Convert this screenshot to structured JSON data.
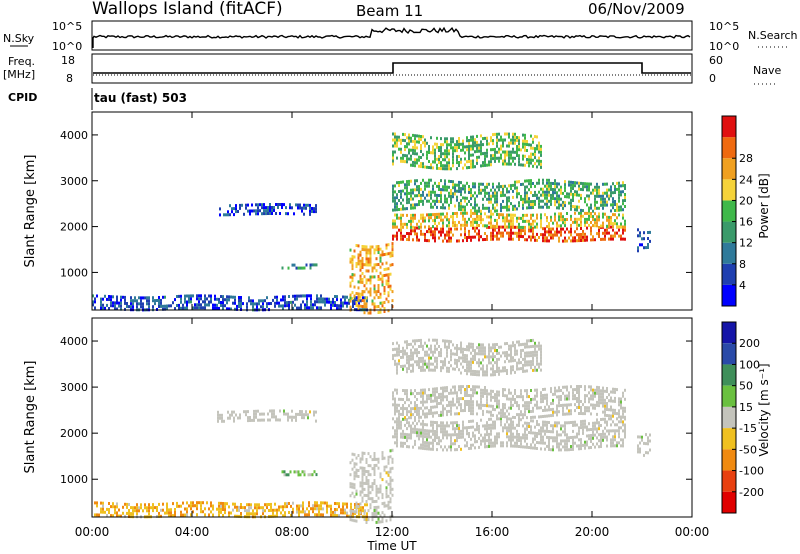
{
  "header": {
    "station": "Wallops Island (fitACF)",
    "beam": "Beam 11",
    "date": "06/Nov/2009"
  },
  "top_panels": {
    "nsky_label": "N.Sky",
    "nsky_ticks": [
      "10^5",
      "10^0"
    ],
    "nsearch_label": "N.Search",
    "nsearch_ticks": [
      "10^5",
      "10^0"
    ],
    "freq_label": "Freq.",
    "freq_unit": "[MHz]",
    "freq_ticks": [
      "18",
      "8"
    ],
    "nave_label": "Nave",
    "nave_ticks": [
      "60",
      "0"
    ],
    "cpid_label": "CPID",
    "cpid_value": "tau (fast) 503"
  },
  "colors": {
    "power_scale": [
      "#0000ff",
      "#1f3fb0",
      "#2f7a9a",
      "#3a9a6a",
      "#3fb84a",
      "#f5d33a",
      "#f0a020",
      "#ef6a10",
      "#e01010"
    ],
    "velocity_scale": [
      "#1515a8",
      "#2a4aa8",
      "#3f8f5a",
      "#6ac040",
      "#c4c4bc",
      "#efc020",
      "#f08a10",
      "#e84010",
      "#e00000"
    ],
    "ground_scatter": "#c4c4bc"
  },
  "chart_data": [
    {
      "type": "heatmap",
      "name": "Power",
      "ylabel": "Slant Range [km]",
      "xlim": [
        0,
        24
      ],
      "ylim": [
        180,
        4500
      ],
      "yticks": [
        1000,
        2000,
        3000,
        4000
      ],
      "colorbar": {
        "label": "Power [dB]",
        "range": [
          0,
          32
        ],
        "ticks": [
          "4",
          "8",
          "12",
          "16",
          "20",
          "24",
          "28"
        ]
      },
      "echo_regions": [
        {
          "t": [
            0.0,
            11.0
          ],
          "range": [
            200,
            500
          ],
          "value": 6,
          "note": "near-range scatter"
        },
        {
          "t": [
            5.0,
            9.0
          ],
          "range": [
            2300,
            2500
          ],
          "value": 5
        },
        {
          "t": [
            7.5,
            9.0
          ],
          "range": [
            1100,
            1200
          ],
          "value": 10
        },
        {
          "t": [
            10.3,
            12.0
          ],
          "range": [
            200,
            1700
          ],
          "value": 22
        },
        {
          "t": [
            12.0,
            21.3
          ],
          "range": [
            1700,
            2000
          ],
          "value": 28
        },
        {
          "t": [
            12.0,
            21.3
          ],
          "range": [
            2000,
            2300
          ],
          "value": 20
        },
        {
          "t": [
            12.0,
            21.3
          ],
          "range": [
            2400,
            3000
          ],
          "value": 14
        },
        {
          "t": [
            12.0,
            18.0
          ],
          "range": [
            3300,
            4000
          ],
          "value": 16
        },
        {
          "t": [
            21.8,
            22.3
          ],
          "range": [
            1500,
            2000
          ],
          "value": 6
        }
      ]
    },
    {
      "type": "heatmap",
      "name": "Velocity",
      "ylabel": "Slant Range [km]",
      "xlabel": "Time UT",
      "xlim": [
        0,
        24
      ],
      "ylim": [
        180,
        4500
      ],
      "yticks": [
        1000,
        2000,
        3000,
        4000
      ],
      "xticks": [
        "00:00",
        "04:00",
        "08:00",
        "12:00",
        "16:00",
        "20:00",
        "00:00"
      ],
      "colorbar": {
        "label": "Velocity [m s⁻¹]",
        "ticks": [
          "200",
          "100",
          "50",
          "15",
          "-15",
          "-50",
          "-100",
          "-200"
        ]
      },
      "echo_regions": [
        {
          "t": [
            0.0,
            11.0
          ],
          "range": [
            200,
            500
          ],
          "value": -40
        },
        {
          "t": [
            5.0,
            9.0
          ],
          "range": [
            2300,
            2500
          ],
          "value": 0,
          "ground_scatter": true
        },
        {
          "t": [
            7.5,
            9.0
          ],
          "range": [
            1100,
            1200
          ],
          "value": 30
        },
        {
          "t": [
            10.3,
            12.0
          ],
          "range": [
            200,
            1700
          ],
          "value": 0,
          "ground_scatter": true
        },
        {
          "t": [
            12.0,
            21.3
          ],
          "range": [
            1700,
            2300
          ],
          "value": 0,
          "ground_scatter": true
        },
        {
          "t": [
            12.0,
            21.3
          ],
          "range": [
            2400,
            3000
          ],
          "value": 0,
          "ground_scatter": true
        },
        {
          "t": [
            12.0,
            18.0
          ],
          "range": [
            3300,
            4000
          ],
          "value": 0,
          "ground_scatter": true
        },
        {
          "t": [
            21.8,
            22.3
          ],
          "range": [
            1500,
            2000
          ],
          "value": 0,
          "ground_scatter": true
        }
      ]
    }
  ]
}
